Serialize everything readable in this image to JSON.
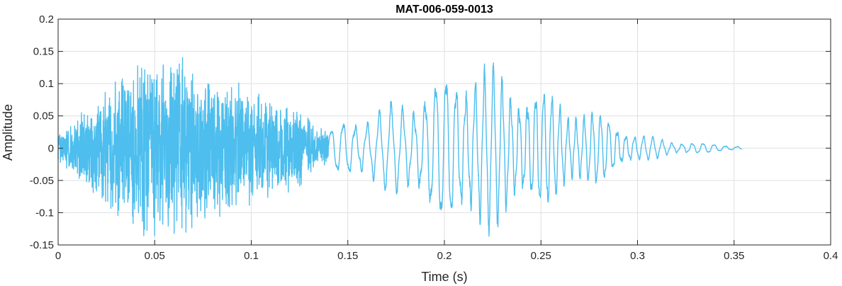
{
  "chart_data": {
    "type": "line",
    "title": "MAT-006-059-0013",
    "xlabel": "Time (s)",
    "ylabel": "Amplitude",
    "xlim": [
      0,
      0.4
    ],
    "ylim": [
      -0.15,
      0.2
    ],
    "grid": true,
    "x_ticks": [
      0,
      0.05,
      0.1,
      0.15,
      0.2,
      0.25,
      0.3,
      0.35,
      0.4
    ],
    "y_ticks": [
      -0.15,
      -0.1,
      -0.05,
      0,
      0.05,
      0.1,
      0.15,
      0.2
    ],
    "x_tick_labels": [
      "0",
      "0.05",
      "0.1",
      "0.15",
      "0.2",
      "0.25",
      "0.3",
      "0.35",
      "0.4"
    ],
    "y_tick_labels": [
      "-0.15",
      "-0.1",
      "-0.05",
      "0",
      "0.05",
      "0.1",
      "0.15",
      "0.2"
    ],
    "series": [
      {
        "color": "#4DBEEE",
        "signal_end_x": 0.354,
        "envelope": [
          {
            "x": 0.0,
            "amp": 0.02
          },
          {
            "x": 0.01,
            "amp": 0.05
          },
          {
            "x": 0.02,
            "amp": 0.08
          },
          {
            "x": 0.035,
            "amp": 0.12
          },
          {
            "x": 0.045,
            "amp": 0.15
          },
          {
            "x": 0.06,
            "amp": 0.15
          },
          {
            "x": 0.075,
            "amp": 0.12
          },
          {
            "x": 0.09,
            "amp": 0.11
          },
          {
            "x": 0.1,
            "amp": 0.1
          },
          {
            "x": 0.115,
            "amp": 0.08
          },
          {
            "x": 0.13,
            "amp": 0.05
          },
          {
            "x": 0.14,
            "amp": 0.025
          },
          {
            "x": 0.15,
            "amp": 0.045
          },
          {
            "x": 0.17,
            "amp": 0.06
          },
          {
            "x": 0.19,
            "amp": 0.09
          },
          {
            "x": 0.215,
            "amp": 0.13
          },
          {
            "x": 0.235,
            "amp": 0.1
          },
          {
            "x": 0.255,
            "amp": 0.08
          },
          {
            "x": 0.27,
            "amp": 0.06
          },
          {
            "x": 0.285,
            "amp": 0.045
          },
          {
            "x": 0.3,
            "amp": 0.02
          },
          {
            "x": 0.32,
            "amp": 0.01
          },
          {
            "x": 0.354,
            "amp": 0.003
          }
        ]
      }
    ]
  }
}
